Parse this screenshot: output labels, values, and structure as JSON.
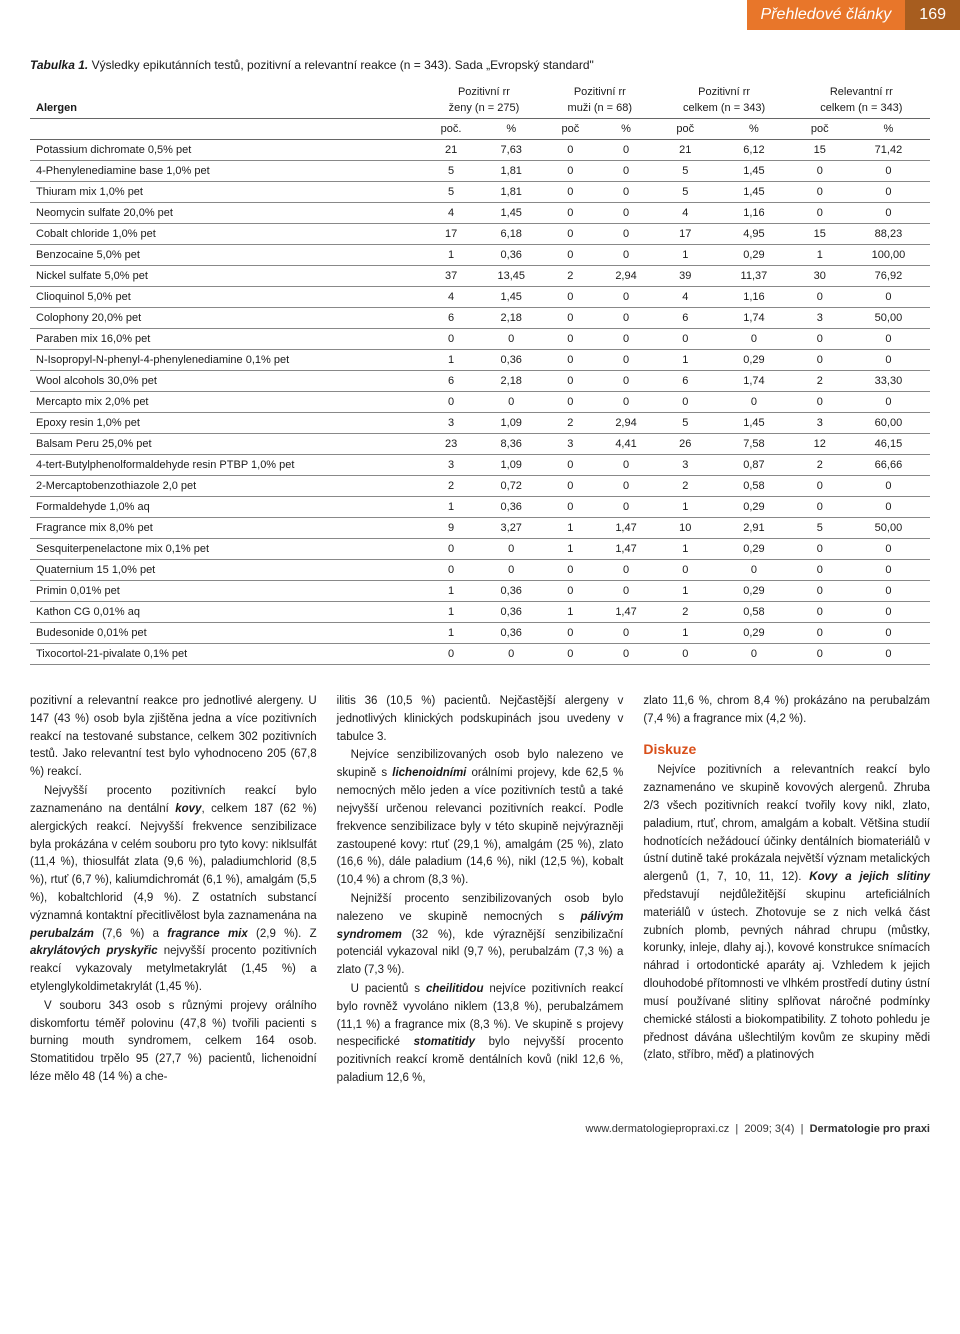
{
  "header": {
    "section_label": "Přehledové články",
    "page_number": "169"
  },
  "table": {
    "caption_bold": "Tabulka 1.",
    "caption_rest": "Výsledky epikutánních testů, pozitivní a relevantní reakce (n = 343). Sada „Evropský standard\"",
    "header_allergen": "Alergen",
    "groups": [
      {
        "label": "Pozitivní rr",
        "sub": "ženy (n = 275)"
      },
      {
        "label": "Pozitivní rr",
        "sub": "muži (n = 68)"
      },
      {
        "label": "Pozitivní rr",
        "sub": "celkem (n = 343)"
      },
      {
        "label": "Relevantní rr",
        "sub": "celkem (n = 343)"
      }
    ],
    "unit_pairs": [
      [
        "poč.",
        "%"
      ],
      [
        "poč",
        "%"
      ],
      [
        "poč",
        "%"
      ],
      [
        "poč",
        "%"
      ]
    ],
    "rows": [
      {
        "a": "Potassium dichromate 0,5% pet",
        "v": [
          "21",
          "7,63",
          "0",
          "0",
          "21",
          "6,12",
          "15",
          "71,42"
        ]
      },
      {
        "a": "4-Phenylenediamine base 1,0% pet",
        "v": [
          "5",
          "1,81",
          "0",
          "0",
          "5",
          "1,45",
          "0",
          "0"
        ]
      },
      {
        "a": "Thiuram mix 1,0% pet",
        "v": [
          "5",
          "1,81",
          "0",
          "0",
          "5",
          "1,45",
          "0",
          "0"
        ]
      },
      {
        "a": "Neomycin sulfate 20,0% pet",
        "v": [
          "4",
          "1,45",
          "0",
          "0",
          "4",
          "1,16",
          "0",
          "0"
        ]
      },
      {
        "a": "Cobalt chloride 1,0% pet",
        "v": [
          "17",
          "6,18",
          "0",
          "0",
          "17",
          "4,95",
          "15",
          "88,23"
        ]
      },
      {
        "a": "Benzocaine 5,0% pet",
        "v": [
          "1",
          "0,36",
          "0",
          "0",
          "1",
          "0,29",
          "1",
          "100,00"
        ]
      },
      {
        "a": "Nickel sulfate 5,0% pet",
        "v": [
          "37",
          "13,45",
          "2",
          "2,94",
          "39",
          "11,37",
          "30",
          "76,92"
        ]
      },
      {
        "a": "Clioquinol 5,0% pet",
        "v": [
          "4",
          "1,45",
          "0",
          "0",
          "4",
          "1,16",
          "0",
          "0"
        ]
      },
      {
        "a": "Colophony 20,0% pet",
        "v": [
          "6",
          "2,18",
          "0",
          "0",
          "6",
          "1,74",
          "3",
          "50,00"
        ]
      },
      {
        "a": "Paraben mix 16,0% pet",
        "v": [
          "0",
          "0",
          "0",
          "0",
          "0",
          "0",
          "0",
          "0"
        ]
      },
      {
        "a": "N-Isopropyl-N-phenyl-4-phenylenediamine 0,1% pet",
        "v": [
          "1",
          "0,36",
          "0",
          "0",
          "1",
          "0,29",
          "0",
          "0"
        ]
      },
      {
        "a": "Wool alcohols 30,0% pet",
        "v": [
          "6",
          "2,18",
          "0",
          "0",
          "6",
          "1,74",
          "2",
          "33,30"
        ]
      },
      {
        "a": "Mercapto mix 2,0% pet",
        "v": [
          "0",
          "0",
          "0",
          "0",
          "0",
          "0",
          "0",
          "0"
        ]
      },
      {
        "a": "Epoxy resin 1,0% pet",
        "v": [
          "3",
          "1,09",
          "2",
          "2,94",
          "5",
          "1,45",
          "3",
          "60,00"
        ]
      },
      {
        "a": "Balsam Peru 25,0% pet",
        "v": [
          "23",
          "8,36",
          "3",
          "4,41",
          "26",
          "7,58",
          "12",
          "46,15"
        ]
      },
      {
        "a": "4-tert-Butylphenolformaldehyde resin PTBP 1,0% pet",
        "v": [
          "3",
          "1,09",
          "0",
          "0",
          "3",
          "0,87",
          "2",
          "66,66"
        ]
      },
      {
        "a": "2-Mercaptobenzothiazole 2,0 pet",
        "v": [
          "2",
          "0,72",
          "0",
          "0",
          "2",
          "0,58",
          "0",
          "0"
        ]
      },
      {
        "a": "Formaldehyde 1,0% aq",
        "v": [
          "1",
          "0,36",
          "0",
          "0",
          "1",
          "0,29",
          "0",
          "0"
        ]
      },
      {
        "a": "Fragrance mix 8,0% pet",
        "v": [
          "9",
          "3,27",
          "1",
          "1,47",
          "10",
          "2,91",
          "5",
          "50,00"
        ]
      },
      {
        "a": "Sesquiterpenelactone mix 0,1% pet",
        "v": [
          "0",
          "0",
          "1",
          "1,47",
          "1",
          "0,29",
          "0",
          "0"
        ]
      },
      {
        "a": "Quaternium 15 1,0% pet",
        "v": [
          "0",
          "0",
          "0",
          "0",
          "0",
          "0",
          "0",
          "0"
        ]
      },
      {
        "a": "Primin 0,01% pet",
        "v": [
          "1",
          "0,36",
          "0",
          "0",
          "1",
          "0,29",
          "0",
          "0"
        ]
      },
      {
        "a": "Kathon CG 0,01% aq",
        "v": [
          "1",
          "0,36",
          "1",
          "1,47",
          "2",
          "0,58",
          "0",
          "0"
        ]
      },
      {
        "a": "Budesonide 0,01% pet",
        "v": [
          "1",
          "0,36",
          "0",
          "0",
          "1",
          "0,29",
          "0",
          "0"
        ]
      },
      {
        "a": "Tixocortol-21-pivalate 0,1% pet",
        "v": [
          "0",
          "0",
          "0",
          "0",
          "0",
          "0",
          "0",
          "0"
        ]
      }
    ]
  },
  "body": {
    "col1": [
      {
        "cls": "noindent",
        "html": "pozitivní a relevantní reakce pro jednotlivé alergeny. U 147 (43 %) osob byla zjištěna jedna a více pozitivních reakcí na testované substance, celkem 302 pozitivních testů. Jako relevantní test bylo vyhodnoceno 205 (67,8 %) reakcí."
      },
      {
        "html": "Nejvyšší procento pozitivních reakcí bylo zaznamenáno na dentální <b><i>kovy</i></b>, celkem 187 (62 %) alergických reakcí. Nejvyšší frekvence senzibilizace byla prokázána v celém souboru pro tyto kovy: niklsulfát (11,4 %), thiosulfát zlata (9,6 %), paladiumchlorid (8,5 %), rtuť (6,7 %), kaliumdichromát (6,1 %), amalgám (5,5 %), kobaltchlorid (4,9 %). Z ostatních substancí významná kontaktní přecitlivělost byla zaznamenána na <b><i>perubalzám</i></b> (7,6 %) a <b><i>fragrance mix</i></b> (2,9 %). Z <b><i>akrylátových pryskyřic</i></b> nejvyšší procento pozitivních reakcí vykazovaly metylmetakrylát (1,45 %) a etylenglykoldimetakrylát (1,45 %)."
      },
      {
        "html": "V souboru 343 osob s různými projevy orálního diskomfortu téměř polovinu (47,8 %) tvořili pacienti s burning mouth syndromem, celkem 164 osob. Stomatitidou trpělo 95 (27,7 %) pacientů, lichenoidní léze mělo 48 (14 %) a che-"
      }
    ],
    "col2": [
      {
        "cls": "noindent",
        "html": "ilitis 36 (10,5 %) pacientů. Nejčastější alergeny v jednotlivých klinických podskupinách jsou uvedeny v tabulce 3."
      },
      {
        "html": "Nejvíce senzibilizovaných osob bylo nalezeno ve skupině s <b><i>lichenoidními</i></b> orálními projevy, kde 62,5 % nemocných mělo jeden a více pozitivních testů a také nejvyšší určenou relevanci pozitivních reakcí. Podle frekvence senzibilizace byly v této skupině nejvýrazněji zastoupené kovy: rtuť (29,1 %), amalgám (25 %), zlato (16,6 %), dále paladium (14,6 %), nikl (12,5 %), kobalt (10,4 %) a chrom (8,3 %)."
      },
      {
        "html": "Nejnižší procento senzibilizovaných osob bylo nalezeno ve skupině nemocných s <b><i>pálivým syndromem</i></b> (32 %), kde výraznější senzibilizační potenciál vykazoval nikl (9,7 %), perubalzám (7,3 %) a zlato (7,3 %)."
      },
      {
        "html": "U pacientů s <b><i>cheilitidou</i></b> nejvíce pozitivních reakcí bylo rovněž vyvoláno niklem (13,8 %), perubalzámem (11,1 %) a fragrance mix (8,3 %). Ve skupině s projevy nespecifické <b><i>stomatitidy</i></b> bylo nejvyšší procento pozitivních reakcí kromě dentálních kovů (nikl 12,6 %, paladium 12,6 %,"
      }
    ],
    "col3": [
      {
        "cls": "noindent",
        "html": "zlato 11,6 %, chrom 8,4 %) prokázáno na perubalzám (7,4 %) a fragrance mix (4,2 %)."
      }
    ],
    "col3_heading": "Diskuze",
    "col3_after": [
      {
        "html": "Nejvíce pozitivních a relevantních reakcí bylo zaznamenáno ve skupině kovových alergenů. Zhruba 2/3 všech pozitivních reakcí tvořily kovy nikl, zlato, paladium, rtuť, chrom, amalgám a kobalt. Většina studií hodnotících nežádoucí účinky dentálních biomateriálů v ústní dutině také prokázala největší význam metalických alergenů (1, 7, 10, 11, 12). <b><i>Kovy a jejich slitiny</i></b> představují nejdůležitější skupinu arteficiálních materiálů v ústech. Zhotovuje se z nich velká část zubních plomb, pevných náhrad chrupu (můstky, korunky, inleje, dlahy aj.), kovové konstrukce snímacích náhrad i ortodontické aparáty aj. Vzhledem k jejich dlouhodobé přítomnosti ve vlhkém prostředí dutiny ústní musí používané slitiny splňovat náročné podmínky chemické stálosti a biokompatibility. Z tohoto pohledu je přednost dávána ušlechtilým kovům ze skupiny mědi (zlato, stříbro, měď) a platinových"
      }
    ]
  },
  "footer": {
    "url": "www.dermatologiepropraxi.cz",
    "sep1": "|",
    "issue": "2009; 3(4)",
    "sep2": "|",
    "journal": "Dermatologie pro praxi"
  }
}
